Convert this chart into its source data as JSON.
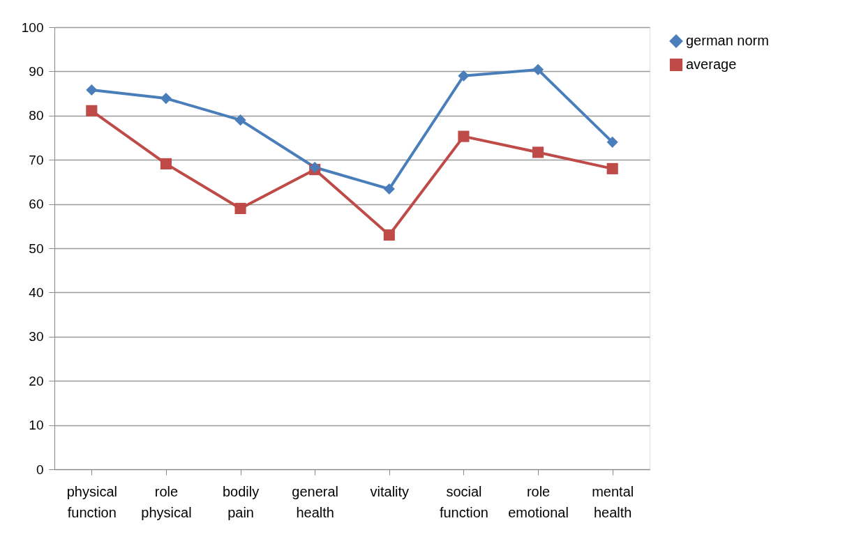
{
  "chart_data": {
    "type": "line",
    "categories": [
      "physical function",
      "role physical",
      "bodily pain",
      "general health",
      "vitality",
      "social function",
      "role emotional",
      "mental health"
    ],
    "series": [
      {
        "name": "german norm",
        "color": "#4a7ebb",
        "marker": "diamond",
        "values": [
          85.8,
          83.9,
          79.0,
          68.3,
          63.4,
          89.0,
          90.4,
          74.0
        ]
      },
      {
        "name": "average",
        "color": "#be4b48",
        "marker": "square",
        "values": [
          81.1,
          69.1,
          59.0,
          67.8,
          53.0,
          75.3,
          71.7,
          68.0
        ]
      }
    ],
    "ylim": [
      0,
      100
    ],
    "yticks": [
      0,
      10,
      20,
      30,
      40,
      50,
      60,
      70,
      80,
      90,
      100
    ],
    "grid": "y",
    "legend": "right"
  }
}
